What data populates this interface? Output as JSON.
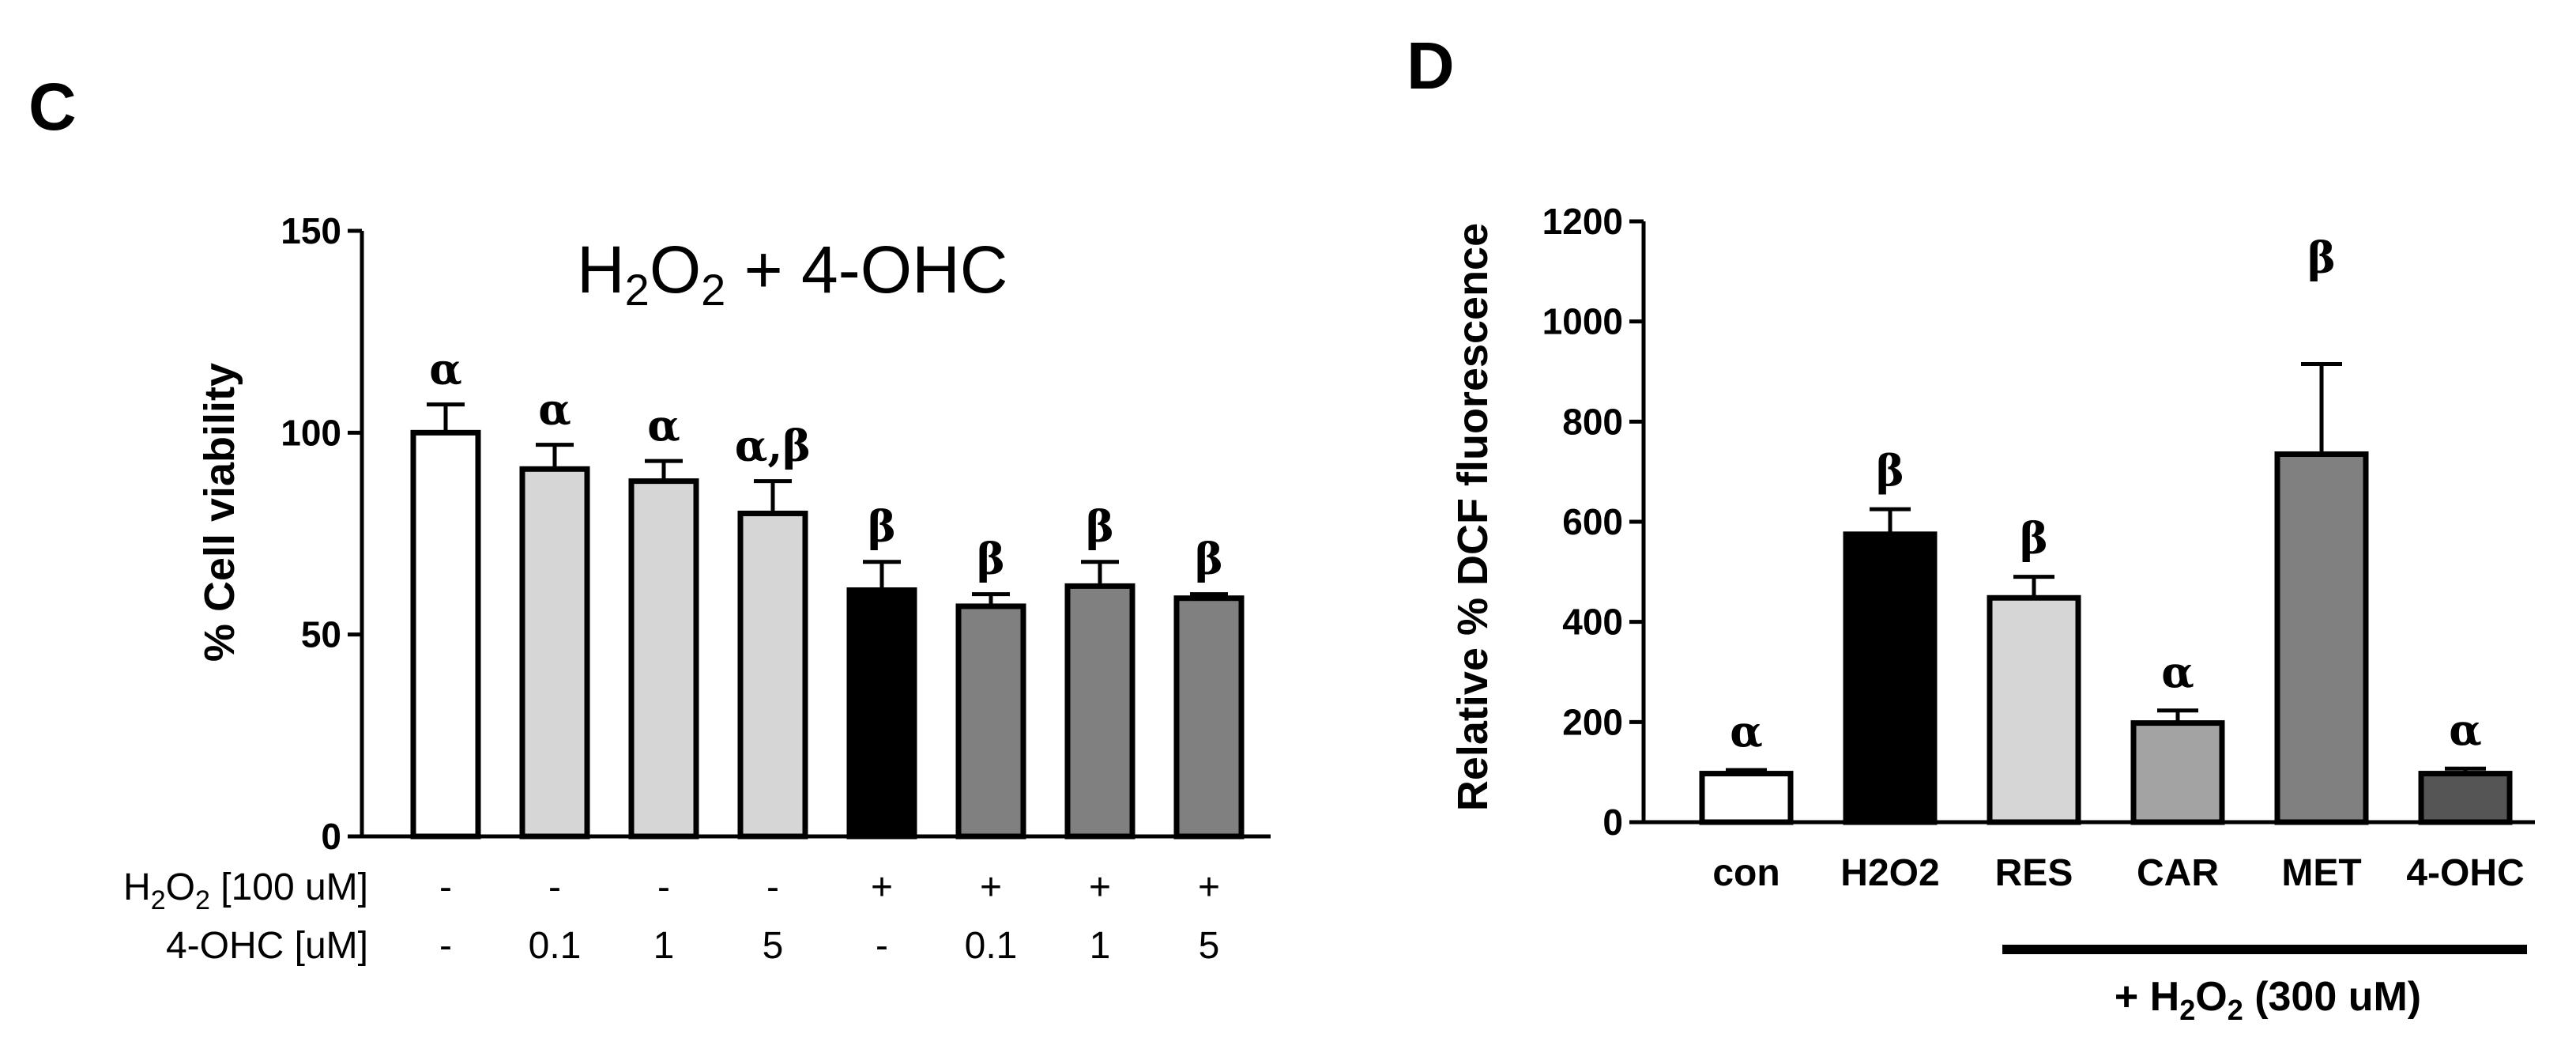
{
  "chart_data": [
    {
      "panel": "C",
      "type": "bar",
      "title": {
        "main": "H",
        "sub1": "2",
        "mid": "O",
        "sub2": "2",
        "rest": " + 4-OHC"
      },
      "ylabel": "% Cell viability",
      "ylim": [
        0,
        150
      ],
      "yticks": [
        "0",
        "50",
        "100",
        "150"
      ],
      "grid": false,
      "bars": [
        {
          "value": 100,
          "error": 7,
          "sig": "α",
          "color": "#ffffff"
        },
        {
          "value": 91,
          "error": 6,
          "sig": "α",
          "color": "#d6d6d6"
        },
        {
          "value": 88,
          "error": 5,
          "sig": "α",
          "color": "#d6d6d6"
        },
        {
          "value": 80,
          "error": 8,
          "sig": "α,β",
          "color": "#d6d6d6"
        },
        {
          "value": 61,
          "error": 7,
          "sig": "β",
          "color": "#000000"
        },
        {
          "value": 57,
          "error": 3,
          "sig": "β",
          "color": "#808080"
        },
        {
          "value": 62,
          "error": 6,
          "sig": "β",
          "color": "#808080"
        },
        {
          "value": 59,
          "error": 1,
          "sig": "β",
          "color": "#808080"
        }
      ],
      "condition_rows": [
        {
          "label": {
            "main": "H",
            "sub": "2",
            "mid": "O",
            "sub2": "2",
            "rest": " [100 uM]"
          },
          "values": [
            "-",
            "-",
            "-",
            "-",
            "+",
            "+",
            "+",
            "+"
          ]
        },
        {
          "label": {
            "text": "4-OHC [uM]"
          },
          "values": [
            "-",
            "0.1",
            "1",
            "5",
            "-",
            "0.1",
            "1",
            "5"
          ]
        }
      ]
    },
    {
      "panel": "D",
      "type": "bar",
      "ylabel": "Relative % DCF fluorescence",
      "ylim": [
        0,
        1200
      ],
      "yticks": [
        "0",
        "200",
        "400",
        "600",
        "800",
        "1000",
        "1200"
      ],
      "grid": false,
      "categories": [
        "con",
        "H2O2",
        "RES",
        "CAR",
        "MET",
        "4-OHC"
      ],
      "bars": [
        {
          "value": 97,
          "error": 7,
          "sig": "α",
          "color": "#ffffff"
        },
        {
          "value": 575,
          "error": 50,
          "sig": "β",
          "color": "#000000"
        },
        {
          "value": 448,
          "error": 42,
          "sig": "β",
          "color": "#d6d6d6"
        },
        {
          "value": 198,
          "error": 25,
          "sig": "α",
          "color": "#a3a3a3"
        },
        {
          "value": 735,
          "error": 180,
          "sig": "β",
          "color": "#808080"
        },
        {
          "value": 97,
          "error": 10,
          "sig": "α",
          "color": "#555555"
        }
      ],
      "bracket_label": {
        "pre": "+ H",
        "sub": "2",
        "post": "O",
        "sub2": "2",
        "rest": " (300 uM)"
      }
    }
  ]
}
